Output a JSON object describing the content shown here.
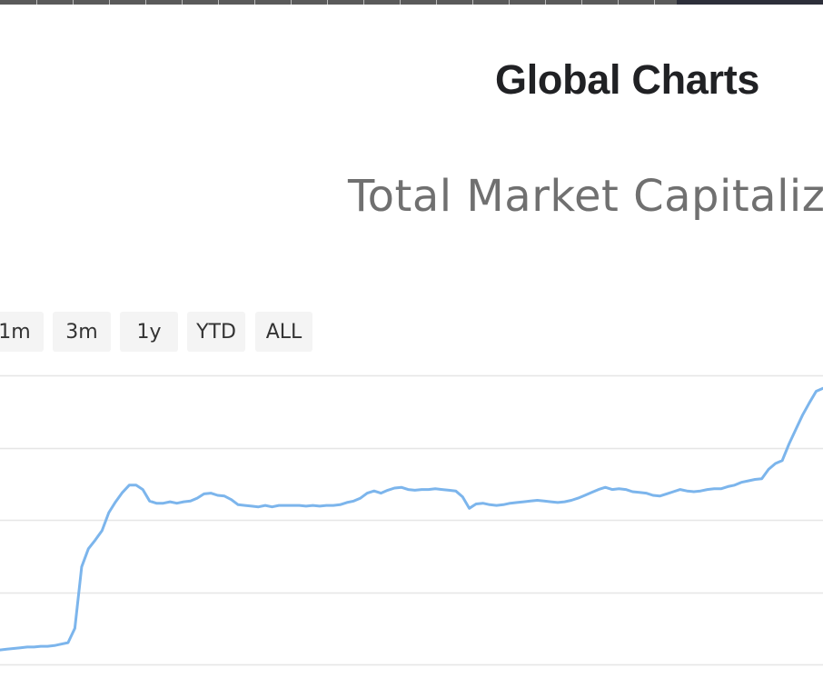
{
  "page": {
    "title": "Global Charts"
  },
  "range_selector": {
    "buttons": [
      "1m",
      "3m",
      "1y",
      "YTD",
      "ALL"
    ]
  },
  "colors": {
    "line": "#7cb5ec",
    "grid": "#e6e6e6",
    "title": "#202124",
    "subtitle": "#707070"
  },
  "chart_data": {
    "type": "line",
    "title": "Total Market Capitaliz",
    "xlabel": "",
    "ylabel": "",
    "grid": true,
    "ylim": [
      0,
      4
    ],
    "series": [
      {
        "color": "#7cb5ec",
        "x": [
          0,
          1,
          2,
          3,
          4,
          5,
          6,
          7,
          8,
          9,
          10,
          11,
          12,
          13,
          14,
          15,
          16,
          17,
          18,
          19,
          20,
          21,
          22,
          23,
          24,
          25,
          26,
          27,
          28,
          29,
          30,
          31,
          32,
          33,
          34,
          35,
          36,
          37,
          38,
          39,
          40,
          41,
          42,
          43,
          44,
          45,
          46,
          47,
          48,
          49,
          50,
          51,
          52,
          53,
          54,
          55,
          56,
          57,
          58,
          59,
          60,
          61,
          62,
          63,
          64,
          65,
          66,
          67,
          68,
          69,
          70,
          71,
          72,
          73,
          74,
          75,
          76,
          77,
          78,
          79,
          80,
          81,
          82,
          83,
          84,
          85,
          86,
          87,
          88,
          89,
          90,
          91,
          92,
          93,
          94,
          95,
          96,
          97,
          98,
          99,
          100,
          101,
          102,
          103,
          104,
          105,
          106,
          107,
          108,
          109,
          110,
          111,
          112,
          113,
          114,
          115,
          116,
          117,
          118,
          119,
          120,
          121
        ],
        "values": [
          0.2,
          0.21,
          0.22,
          0.23,
          0.24,
          0.24,
          0.25,
          0.25,
          0.26,
          0.28,
          0.3,
          0.5,
          1.35,
          1.6,
          1.72,
          1.85,
          2.1,
          2.25,
          2.38,
          2.48,
          2.48,
          2.42,
          2.26,
          2.23,
          2.23,
          2.25,
          2.23,
          2.25,
          2.26,
          2.3,
          2.36,
          2.37,
          2.34,
          2.33,
          2.28,
          2.21,
          2.2,
          2.19,
          2.18,
          2.2,
          2.18,
          2.2,
          2.2,
          2.2,
          2.2,
          2.19,
          2.2,
          2.19,
          2.2,
          2.2,
          2.21,
          2.24,
          2.26,
          2.3,
          2.37,
          2.4,
          2.37,
          2.41,
          2.44,
          2.45,
          2.42,
          2.41,
          2.42,
          2.42,
          2.43,
          2.42,
          2.41,
          2.4,
          2.32,
          2.16,
          2.22,
          2.23,
          2.21,
          2.2,
          2.21,
          2.23,
          2.24,
          2.25,
          2.26,
          2.27,
          2.26,
          2.25,
          2.24,
          2.25,
          2.27,
          2.3,
          2.34,
          2.38,
          2.42,
          2.45,
          2.42,
          2.43,
          2.42,
          2.39,
          2.38,
          2.37,
          2.34,
          2.33,
          2.36,
          2.39,
          2.42,
          2.4,
          2.39,
          2.4,
          2.42,
          2.43,
          2.43,
          2.46,
          2.48,
          2.52,
          2.54,
          2.56,
          2.57,
          2.7,
          2.78,
          2.82,
          3.05,
          3.25,
          3.45,
          3.62,
          3.78,
          3.82
        ]
      }
    ]
  }
}
